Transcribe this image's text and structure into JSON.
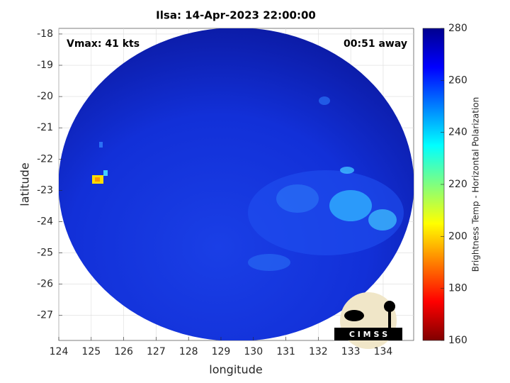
{
  "chart_data": {
    "type": "image",
    "title": "Ilsa: 14-Apr-2023 22:00:00",
    "annotations": [
      "Vmax: 41 kts",
      "00:51 away"
    ],
    "x_label": "longitude",
    "y_label": "latitude",
    "xlim": [
      124,
      134.94
    ],
    "xticks": [
      124,
      125,
      126,
      127,
      128,
      129,
      130,
      131,
      132,
      133,
      134
    ],
    "ylim": [
      -27.8,
      -17.82
    ],
    "yticks": [
      -27,
      -26,
      -25,
      -24,
      -23,
      -22,
      -21,
      -20,
      -19,
      -18
    ],
    "grid": true,
    "colorbar": {
      "label": "Brightness Temp - Horizontal Polarization",
      "lim": [
        160,
        280
      ],
      "ticks": [
        160,
        180,
        200,
        220,
        240,
        260,
        280
      ]
    },
    "logo_text": "C I M S S"
  }
}
